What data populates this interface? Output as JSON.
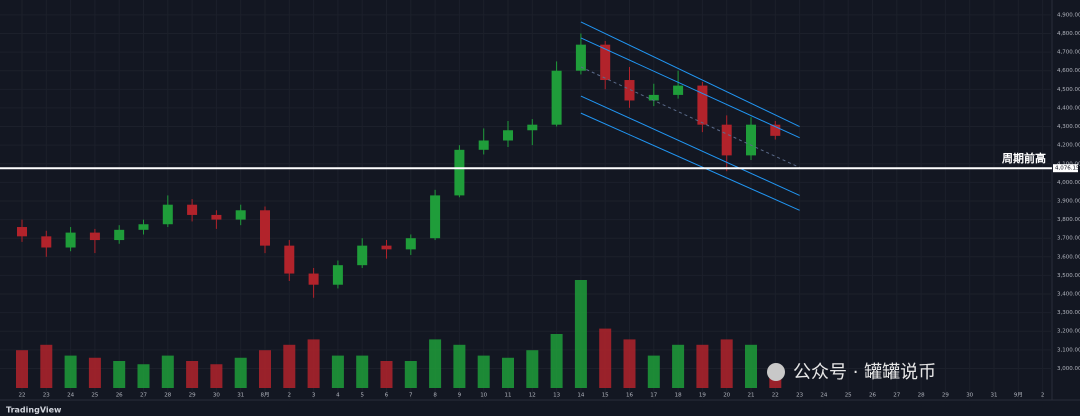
{
  "chart_data": {
    "type": "candlestick",
    "categories": [
      "22",
      "23",
      "24",
      "25",
      "26",
      "27",
      "28",
      "29",
      "30",
      "31",
      "8月",
      "2",
      "3",
      "4",
      "5",
      "6",
      "7",
      "8",
      "9",
      "10",
      "11",
      "12",
      "13",
      "14",
      "15",
      "16",
      "17",
      "18",
      "19",
      "20",
      "21",
      "22",
      "23",
      "24",
      "25",
      "26",
      "27",
      "28",
      "29",
      "30",
      "31",
      "9月",
      "2"
    ],
    "ohlc": [
      [
        3760,
        3800,
        3680,
        3710
      ],
      [
        3710,
        3740,
        3600,
        3650
      ],
      [
        3650,
        3760,
        3630,
        3730
      ],
      [
        3730,
        3750,
        3620,
        3690
      ],
      [
        3690,
        3770,
        3670,
        3745
      ],
      [
        3745,
        3800,
        3720,
        3775
      ],
      [
        3775,
        3930,
        3760,
        3880
      ],
      [
        3880,
        3910,
        3790,
        3825
      ],
      [
        3825,
        3850,
        3750,
        3800
      ],
      [
        3800,
        3880,
        3770,
        3850
      ],
      [
        3850,
        3870,
        3620,
        3660
      ],
      [
        3660,
        3690,
        3470,
        3510
      ],
      [
        3510,
        3540,
        3380,
        3450
      ],
      [
        3450,
        3580,
        3430,
        3555
      ],
      [
        3555,
        3700,
        3540,
        3660
      ],
      [
        3660,
        3690,
        3590,
        3640
      ],
      [
        3640,
        3720,
        3610,
        3700
      ],
      [
        3700,
        3960,
        3690,
        3930
      ],
      [
        3930,
        4200,
        3920,
        4175
      ],
      [
        4175,
        4290,
        4150,
        4225
      ],
      [
        4225,
        4330,
        4190,
        4280
      ],
      [
        4280,
        4340,
        4200,
        4310
      ],
      [
        4310,
        4650,
        4300,
        4600
      ],
      [
        4600,
        4800,
        4580,
        4740
      ],
      [
        4740,
        4760,
        4500,
        4550
      ],
      [
        4550,
        4620,
        4400,
        4440
      ],
      [
        4440,
        4530,
        4410,
        4470
      ],
      [
        4470,
        4600,
        4450,
        4520
      ],
      [
        4520,
        4540,
        4270,
        4310
      ],
      [
        4310,
        4360,
        4060,
        4145
      ],
      [
        4145,
        4350,
        4120,
        4310
      ],
      [
        4310,
        4330,
        4230,
        4250
      ],
      null,
      null,
      null,
      null,
      null,
      null,
      null,
      null,
      null,
      null,
      null
    ],
    "volume": [
      35,
      40,
      30,
      28,
      25,
      22,
      30,
      25,
      22,
      28,
      35,
      40,
      45,
      30,
      30,
      25,
      25,
      45,
      40,
      30,
      28,
      35,
      50,
      100,
      55,
      45,
      30,
      40,
      40,
      45,
      40,
      20,
      null,
      null,
      null,
      null,
      null,
      null,
      null,
      null,
      null,
      null,
      null
    ],
    "up_color": "#1f9d3a",
    "down_color": "#b2232b",
    "ylim": [
      2852,
      4980
    ],
    "yticks": [
      {
        "value": 3000,
        "label": "3,000.00"
      },
      {
        "value": 3100,
        "label": "3,100.00"
      },
      {
        "value": 3200,
        "label": "3,200.00"
      },
      {
        "value": 3300,
        "label": "3,300.00"
      },
      {
        "value": 3400,
        "label": "3,400.00"
      },
      {
        "value": 3500,
        "label": "3,500.00"
      },
      {
        "value": 3600,
        "label": "3,600.00"
      },
      {
        "value": 3700,
        "label": "3,700.00"
      },
      {
        "value": 3800,
        "label": "3,800.00"
      },
      {
        "value": 3900,
        "label": "3,900.00"
      },
      {
        "value": 4000,
        "label": "4,000.00"
      },
      {
        "value": 4100,
        "label": "4,100.00"
      },
      {
        "value": 4200,
        "label": "4,200.00"
      },
      {
        "value": 4300,
        "label": "4,300.00"
      },
      {
        "value": 4400,
        "label": "4,400.00"
      },
      {
        "value": 4500,
        "label": "4,500.00"
      },
      {
        "value": 4600,
        "label": "4,600.00"
      },
      {
        "value": 4700,
        "label": "4,700.00"
      },
      {
        "value": 4800,
        "label": "4,800.00"
      },
      {
        "value": 4900,
        "label": "4,900.00"
      }
    ],
    "grid": true,
    "hline": {
      "value": 4076.15,
      "label": "周期前高",
      "price_label": "4,076.15"
    },
    "channel": [
      {
        "x": [
          23,
          32
        ],
        "y": [
          4862,
          4300
        ],
        "style": "solid"
      },
      {
        "x": [
          23,
          32
        ],
        "y": [
          4776,
          4240
        ],
        "style": "solid"
      },
      {
        "x": [
          23,
          32
        ],
        "y": [
          4620,
          4080
        ],
        "style": "dashed"
      },
      {
        "x": [
          23,
          32
        ],
        "y": [
          4464,
          3930
        ],
        "style": "solid"
      },
      {
        "x": [
          23,
          32
        ],
        "y": [
          4372,
          3850
        ],
        "style": "solid"
      }
    ],
    "watermark": "公众号 · 罐罐说币",
    "logo": "TradingView"
  }
}
